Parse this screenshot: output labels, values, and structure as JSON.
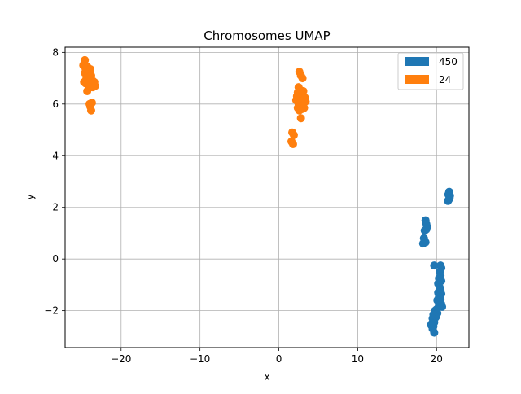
{
  "colors": {
    "series_450": "#1f77b4",
    "series_24": "#ff7f0e",
    "grid": "#b0b0b0",
    "axis": "#000000"
  },
  "chart_data": {
    "type": "scatter",
    "title": "Chromosomes UMAP",
    "xlabel": "x",
    "ylabel": "y",
    "xlim": [
      -27.1,
      24.1
    ],
    "ylim": [
      -3.43,
      8.2
    ],
    "xticks": [
      -20,
      -10,
      0,
      10,
      20
    ],
    "yticks": [
      -2,
      0,
      2,
      4,
      6,
      8
    ],
    "xtick_labels": [
      "−20",
      "−10",
      "0",
      "10",
      "20"
    ],
    "ytick_labels": [
      "−2",
      "0",
      "2",
      "4",
      "6",
      "8"
    ],
    "grid": true,
    "legend_position": "top-right",
    "series": [
      {
        "name": "450",
        "color": "#1f77b4",
        "points": [
          [
            21.6,
            2.6
          ],
          [
            21.5,
            2.5
          ],
          [
            21.7,
            2.45
          ],
          [
            21.55,
            2.3
          ],
          [
            21.45,
            2.25
          ],
          [
            21.65,
            2.35
          ],
          [
            18.6,
            1.5
          ],
          [
            18.7,
            1.35
          ],
          [
            18.8,
            1.25
          ],
          [
            18.5,
            1.1
          ],
          [
            18.7,
            1.15
          ],
          [
            18.4,
            0.8
          ],
          [
            18.5,
            0.7
          ],
          [
            18.3,
            0.6
          ],
          [
            18.6,
            0.65
          ],
          [
            19.7,
            -0.25
          ],
          [
            20.5,
            -0.25
          ],
          [
            20.6,
            -0.35
          ],
          [
            20.4,
            -0.5
          ],
          [
            20.5,
            -0.65
          ],
          [
            20.3,
            -0.75
          ],
          [
            20.6,
            -0.85
          ],
          [
            20.2,
            -0.95
          ],
          [
            20.4,
            -1.1
          ],
          [
            20.5,
            -1.2
          ],
          [
            20.2,
            -1.3
          ],
          [
            20.6,
            -1.35
          ],
          [
            20.3,
            -1.45
          ],
          [
            20.5,
            -1.55
          ],
          [
            20.1,
            -1.6
          ],
          [
            20.6,
            -1.75
          ],
          [
            20.3,
            -1.8
          ],
          [
            20.7,
            -1.85
          ],
          [
            20.0,
            -1.95
          ],
          [
            19.8,
            -2.0
          ],
          [
            20.1,
            -2.1
          ],
          [
            19.6,
            -2.15
          ],
          [
            19.9,
            -2.25
          ],
          [
            19.5,
            -2.3
          ],
          [
            19.7,
            -2.45
          ],
          [
            19.4,
            -2.5
          ],
          [
            19.6,
            -2.6
          ],
          [
            19.3,
            -2.55
          ],
          [
            19.5,
            -2.7
          ],
          [
            19.7,
            -2.85
          ]
        ]
      },
      {
        "name": "24",
        "color": "#ff7f0e",
        "points": [
          [
            -24.6,
            7.7
          ],
          [
            -24.8,
            7.5
          ],
          [
            -24.3,
            7.45
          ],
          [
            -24.5,
            7.35
          ],
          [
            -23.9,
            7.35
          ],
          [
            -24.6,
            7.2
          ],
          [
            -24.2,
            7.15
          ],
          [
            -23.8,
            7.1
          ],
          [
            -24.4,
            7.0
          ],
          [
            -24.0,
            6.95
          ],
          [
            -23.6,
            6.9
          ],
          [
            -24.7,
            6.85
          ],
          [
            -24.5,
            6.8
          ],
          [
            -23.4,
            6.85
          ],
          [
            -23.8,
            6.75
          ],
          [
            -23.3,
            6.7
          ],
          [
            -24.1,
            6.65
          ],
          [
            -23.6,
            6.65
          ],
          [
            -24.3,
            6.5
          ],
          [
            -24.0,
            6.0
          ],
          [
            -23.7,
            6.05
          ],
          [
            -23.9,
            5.9
          ],
          [
            -23.8,
            5.75
          ],
          [
            2.6,
            7.25
          ],
          [
            2.8,
            7.1
          ],
          [
            3.0,
            7.0
          ],
          [
            2.5,
            6.65
          ],
          [
            2.7,
            6.55
          ],
          [
            2.4,
            6.45
          ],
          [
            3.1,
            6.5
          ],
          [
            2.9,
            6.4
          ],
          [
            2.3,
            6.3
          ],
          [
            2.6,
            6.25
          ],
          [
            3.3,
            6.25
          ],
          [
            2.2,
            6.15
          ],
          [
            2.8,
            6.1
          ],
          [
            3.4,
            6.1
          ],
          [
            2.5,
            6.0
          ],
          [
            3.1,
            5.95
          ],
          [
            2.4,
            5.85
          ],
          [
            2.9,
            5.8
          ],
          [
            3.2,
            5.85
          ],
          [
            2.6,
            5.75
          ],
          [
            2.8,
            5.45
          ],
          [
            1.7,
            4.9
          ],
          [
            1.9,
            4.8
          ],
          [
            1.6,
            4.55
          ],
          [
            1.8,
            4.45
          ]
        ]
      }
    ]
  }
}
